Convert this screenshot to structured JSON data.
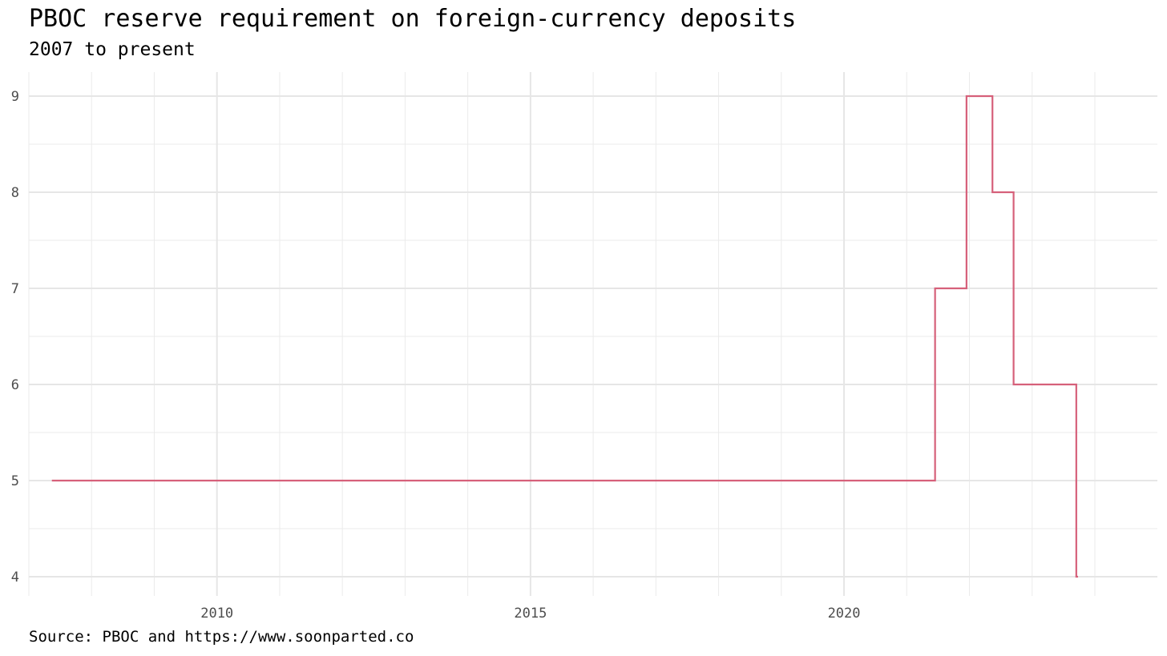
{
  "chart_data": {
    "type": "line",
    "step": true,
    "title": "PBOC reserve requirement on foreign-currency deposits",
    "subtitle": "2007 to present",
    "caption": "Source: PBOC and https://www.soonparted.co",
    "xlabel": "",
    "ylabel": "",
    "xlim": [
      "2007-01-01",
      "2024-12-31"
    ],
    "ylim": [
      3.8,
      9.25
    ],
    "x_ticks": [
      "2010",
      "2015",
      "2020"
    ],
    "y_ticks": [
      4,
      5,
      6,
      7,
      8,
      9
    ],
    "grid": true,
    "legend": "none",
    "line_color": "#d6607a",
    "series": [
      {
        "x": [
          "2007-05-15",
          "2021-06-15",
          "2021-12-15",
          "2022-05-15",
          "2022-09-15",
          "2023-09-15",
          "2023-09-25"
        ],
        "values": [
          5,
          7,
          9,
          8,
          6,
          4,
          4
        ]
      }
    ]
  }
}
